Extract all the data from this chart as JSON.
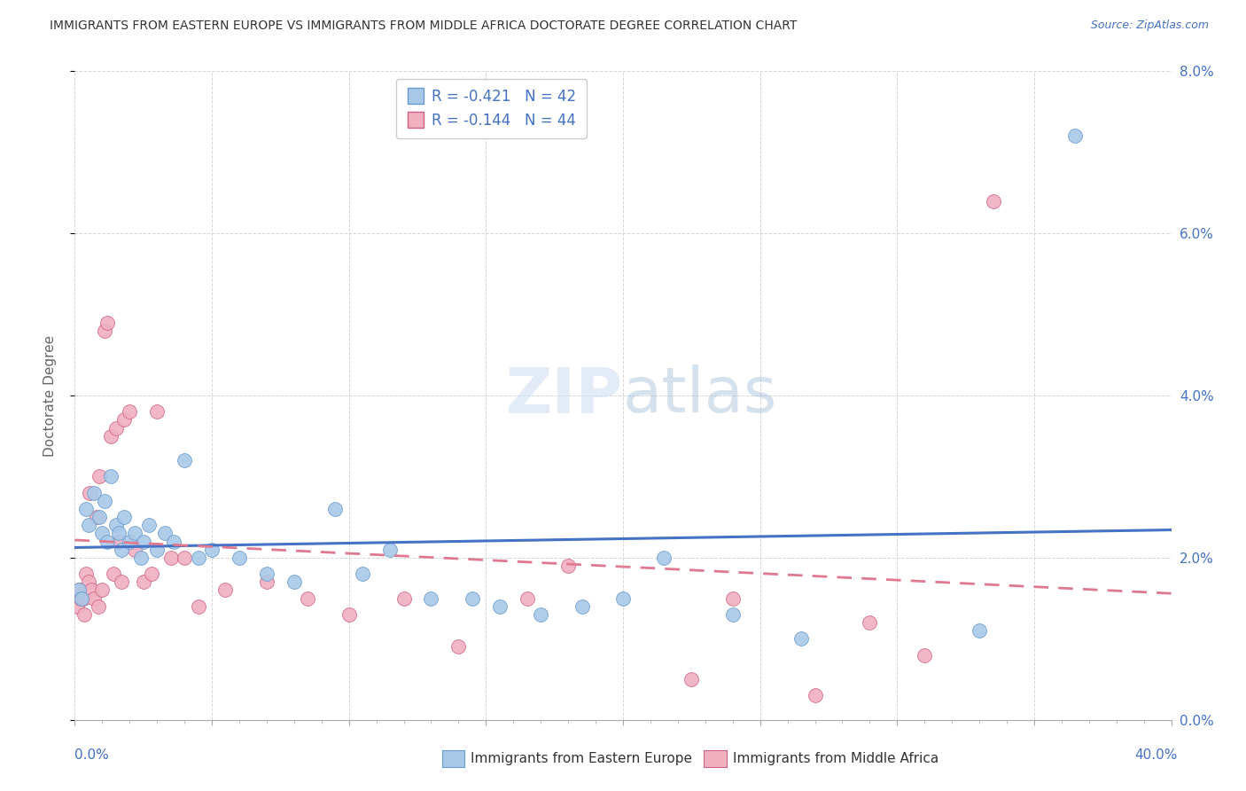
{
  "title": "IMMIGRANTS FROM EASTERN EUROPE VS IMMIGRANTS FROM MIDDLE AFRICA DOCTORATE DEGREE CORRELATION CHART",
  "source": "Source: ZipAtlas.com",
  "ylabel": "Doctorate Degree",
  "legend_label1": "Immigrants from Eastern Europe",
  "legend_label2": "Immigrants from Middle Africa",
  "R1": -0.421,
  "N1": 42,
  "R2": -0.144,
  "N2": 44,
  "color_blue": "#a8c8e8",
  "color_blue_edge": "#6699cc",
  "color_pink": "#f0b0c0",
  "color_pink_edge": "#d06080",
  "color_trendline_blue": "#4472c4",
  "color_trendline_pink": "#e07890",
  "background_color": "#ffffff",
  "grid_color": "#cccccc",
  "title_color": "#333333",
  "axis_label_color": "#4472c4",
  "watermark_color": "#ddeeff",
  "blue_x": [
    0.15,
    0.25,
    0.4,
    0.5,
    0.7,
    0.9,
    1.0,
    1.1,
    1.2,
    1.3,
    1.5,
    1.6,
    1.7,
    1.8,
    2.0,
    2.2,
    2.4,
    2.5,
    2.7,
    3.0,
    3.3,
    3.6,
    4.0,
    4.5,
    5.0,
    6.0,
    7.0,
    8.0,
    9.5,
    10.5,
    11.5,
    13.0,
    14.5,
    15.5,
    17.0,
    18.5,
    20.0,
    21.5,
    24.0,
    26.5,
    33.0,
    36.5
  ],
  "blue_y": [
    1.6,
    1.5,
    2.6,
    2.4,
    2.8,
    2.5,
    2.3,
    2.7,
    2.2,
    3.0,
    2.4,
    2.3,
    2.1,
    2.5,
    2.2,
    2.3,
    2.0,
    2.2,
    2.4,
    2.1,
    2.3,
    2.2,
    3.2,
    2.0,
    2.1,
    2.0,
    1.8,
    1.7,
    2.6,
    1.8,
    2.1,
    1.5,
    1.5,
    1.4,
    1.3,
    1.4,
    1.5,
    2.0,
    1.3,
    1.0,
    1.1,
    7.2
  ],
  "pink_x": [
    0.1,
    0.15,
    0.2,
    0.3,
    0.35,
    0.4,
    0.5,
    0.55,
    0.6,
    0.7,
    0.8,
    0.85,
    0.9,
    1.0,
    1.1,
    1.2,
    1.3,
    1.4,
    1.5,
    1.6,
    1.7,
    1.8,
    2.0,
    2.2,
    2.5,
    2.8,
    3.0,
    3.5,
    4.0,
    4.5,
    5.5,
    7.0,
    8.5,
    10.0,
    12.0,
    14.0,
    16.5,
    18.0,
    22.5,
    24.0,
    27.0,
    29.0,
    31.0,
    33.5
  ],
  "pink_y": [
    1.4,
    1.6,
    1.5,
    1.5,
    1.3,
    1.8,
    1.7,
    2.8,
    1.6,
    1.5,
    2.5,
    1.4,
    3.0,
    1.6,
    4.8,
    4.9,
    3.5,
    1.8,
    3.6,
    2.2,
    1.7,
    3.7,
    3.8,
    2.1,
    1.7,
    1.8,
    3.8,
    2.0,
    2.0,
    1.4,
    1.6,
    1.7,
    1.5,
    1.3,
    1.5,
    0.9,
    1.5,
    1.9,
    0.5,
    1.5,
    0.3,
    1.2,
    0.8,
    6.4
  ]
}
